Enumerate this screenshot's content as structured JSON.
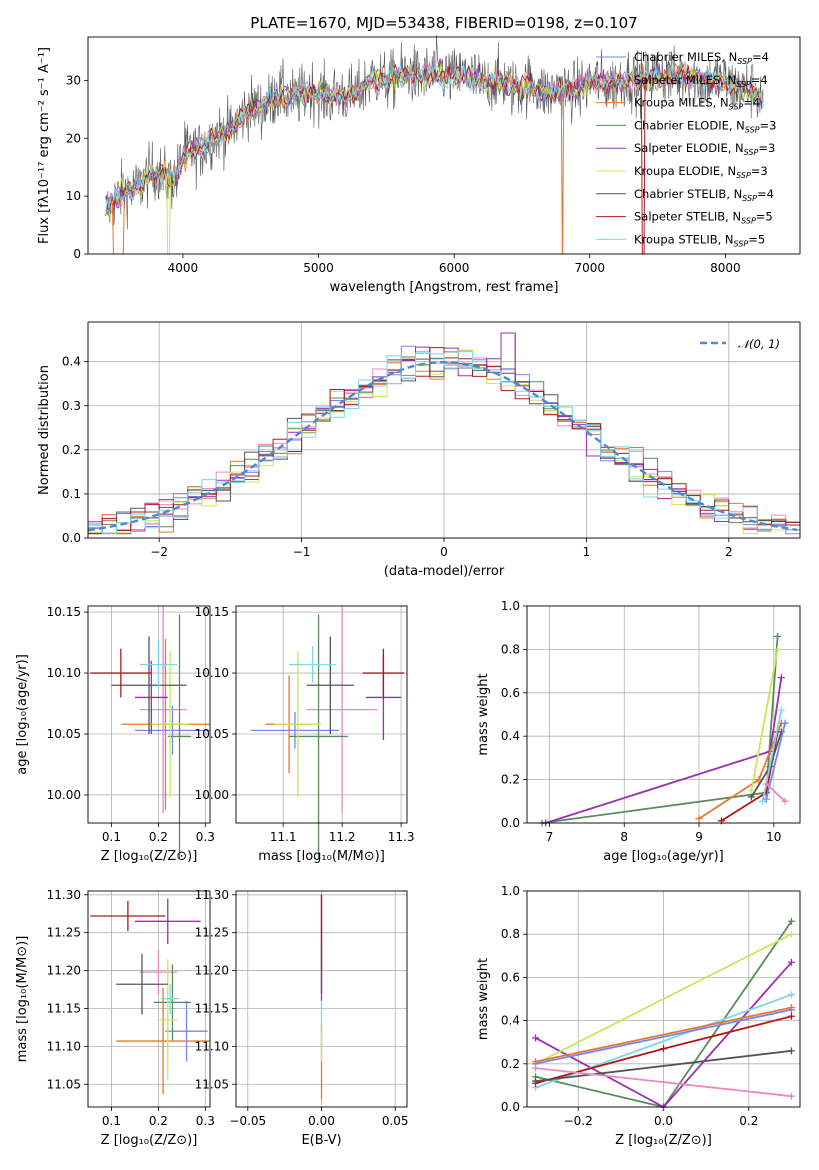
{
  "colors": {
    "Chabrier MILES": "#7088f0",
    "Salpeter MILES": "#e889c0",
    "Kroupa MILES": "#e8772e",
    "Chabrier ELODIE": "#5a8a5e",
    "Salpeter ELODIE": "#9a30b0",
    "Kroupa ELODIE": "#c8e858",
    "Chabrier STELIB": "#555555",
    "Salpeter STELIB": "#b01818",
    "Kroupa STELIB": "#7ad8e8",
    "normal": "#4d88d8"
  },
  "chart_data": [
    {
      "id": "spectrum",
      "type": "line",
      "title": "PLATE=1670, MJD=53438, FIBERID=0198, z=0.107",
      "xlabel": "wavelength [Angstrom, rest frame]",
      "ylabel": "Flux [fλ10⁻¹⁷ erg cm⁻² s⁻¹ A⁻¹]",
      "xlim": [
        3300,
        8550
      ],
      "ylim": [
        0,
        37.5
      ],
      "xticks": [
        "4000",
        "5000",
        "6000",
        "7000",
        "8000"
      ],
      "yticks": [
        "0",
        "10",
        "20",
        "30"
      ],
      "legend": [
        {
          "series": "Chabrier MILES",
          "label": "Chabrier MILES, N",
          "sub": "SSP",
          "tail": "=4"
        },
        {
          "series": "Salpeter MILES",
          "label": "Salpeter MILES, N",
          "sub": "SSP",
          "tail": "=4"
        },
        {
          "series": "Kroupa MILES",
          "label": "Kroupa MILES, N",
          "sub": "SSP",
          "tail": "=4"
        },
        {
          "series": "Chabrier ELODIE",
          "label": "Chabrier ELODIE, N",
          "sub": "SSP",
          "tail": "=3"
        },
        {
          "series": "Salpeter ELODIE",
          "label": "Salpeter ELODIE, N",
          "sub": "SSP",
          "tail": "=3"
        },
        {
          "series": "Kroupa ELODIE",
          "label": "Kroupa ELODIE, N",
          "sub": "SSP",
          "tail": "=3"
        },
        {
          "series": "Chabrier STELIB",
          "label": "Chabrier STELIB, N",
          "sub": "SSP",
          "tail": "=4"
        },
        {
          "series": "Salpeter STELIB",
          "label": "Salpeter STELIB, N",
          "sub": "SSP",
          "tail": "=5"
        },
        {
          "series": "Kroupa STELIB",
          "label": "Kroupa STELIB, N",
          "sub": "SSP",
          "tail": "=5"
        }
      ],
      "continuum": [
        [
          3430,
          8
        ],
        [
          3600,
          11
        ],
        [
          3800,
          14
        ],
        [
          3950,
          13
        ],
        [
          4000,
          17
        ],
        [
          4100,
          18
        ],
        [
          4300,
          21
        ],
        [
          4500,
          25
        ],
        [
          4700,
          27
        ],
        [
          5000,
          28
        ],
        [
          5200,
          27
        ],
        [
          5400,
          30
        ],
        [
          5700,
          31
        ],
        [
          6000,
          31
        ],
        [
          6200,
          30
        ],
        [
          6500,
          29
        ],
        [
          6800,
          28
        ],
        [
          7000,
          29.5
        ],
        [
          7300,
          30
        ],
        [
          7600,
          31
        ],
        [
          7900,
          30
        ],
        [
          8100,
          29
        ],
        [
          8280,
          27
        ]
      ],
      "drops": [
        {
          "series": "Kroupa MILES",
          "x": [
            3480,
            3560
          ]
        },
        {
          "series": "Kroupa ELODIE",
          "x": [
            3880,
            3900
          ]
        },
        {
          "series": "Kroupa MILES",
          "x": [
            6790,
            6800
          ]
        },
        {
          "series": "Salpeter STELIB",
          "x": [
            7380,
            7400
          ]
        }
      ]
    },
    {
      "id": "residuals",
      "type": "histogram",
      "xlabel": "(data-model)/error",
      "ylabel": "Normed distribution",
      "xlim": [
        -2.5,
        2.5
      ],
      "ylim": [
        0,
        0.49
      ],
      "xticks": [
        "−2",
        "−1",
        "0",
        "1",
        "2"
      ],
      "yticks": [
        "0.0",
        "0.1",
        "0.2",
        "0.3",
        "0.4"
      ],
      "legend": "𝒩(0, 1)",
      "bin_width": 0.1
    },
    {
      "id": "age_vs_Z",
      "type": "errorbar",
      "xlabel": "Z [log₁₀(Z/Z⊙)]",
      "ylabel": "age  [log₁₀(age/yr)]",
      "xlim": [
        0.05,
        0.31
      ],
      "ylim": [
        9.977,
        10.155
      ],
      "xticks": [
        "0.1",
        "0.2",
        "0.3"
      ],
      "yticks": [
        "10.00",
        "10.05",
        "10.10",
        "10.15"
      ],
      "points": [
        {
          "s": "Chabrier MILES",
          "x": 0.23,
          "xe": 0.08,
          "y": 10.053,
          "ye": 0.02
        },
        {
          "s": "Salpeter MILES",
          "x": 0.21,
          "xe": 0.05,
          "y": 10.07,
          "ye": 0.085
        },
        {
          "s": "Kroupa MILES",
          "x": 0.215,
          "xe": 0.095,
          "y": 10.058,
          "ye": 0.07
        },
        {
          "s": "Chabrier ELODIE",
          "x": 0.245,
          "xe": 0.025,
          "y": 10.048,
          "ye": 0.1
        },
        {
          "s": "Salpeter ELODIE",
          "x": 0.185,
          "xe": 0.035,
          "y": 10.08,
          "ye": 0.03
        },
        {
          "s": "Kroupa ELODIE",
          "x": 0.225,
          "xe": 0.04,
          "y": 10.058,
          "ye": 0.06
        },
        {
          "s": "Chabrier STELIB",
          "x": 0.18,
          "xe": 0.08,
          "y": 10.09,
          "ye": 0.04
        },
        {
          "s": "Salpeter STELIB",
          "x": 0.12,
          "xe": 0.065,
          "y": 10.1,
          "ye": 0.02
        },
        {
          "s": "Kroupa STELIB",
          "x": 0.2,
          "xe": 0.04,
          "y": 10.107,
          "ye": 0.02
        }
      ]
    },
    {
      "id": "age_vs_mass",
      "type": "errorbar",
      "xlabel": "mass [log₁₀(M/M⊙)]",
      "xlim": [
        11.02,
        11.31
      ],
      "ylim": [
        9.977,
        10.155
      ],
      "xticks": [
        "11.1",
        "11.2",
        "11.3"
      ],
      "yticks": [
        "10.00",
        "10.05",
        "10.10",
        "10.15"
      ],
      "points": [
        {
          "s": "Chabrier MILES",
          "x": 11.12,
          "xe": 0.075,
          "y": 10.053,
          "ye": 0.015
        },
        {
          "s": "Salpeter MILES",
          "x": 11.2,
          "xe": 0.06,
          "y": 10.07,
          "ye": 0.085
        },
        {
          "s": "Kroupa MILES",
          "x": 11.11,
          "xe": 0.04,
          "y": 10.058,
          "ye": 0.04
        },
        {
          "s": "Chabrier ELODIE",
          "x": 11.16,
          "xe": 0.05,
          "y": 10.048,
          "ye": 0.1
        },
        {
          "s": "Salpeter ELODIE",
          "x": 11.27,
          "xe": 0.03,
          "y": 10.08,
          "ye": 0.035
        },
        {
          "s": "Kroupa ELODIE",
          "x": 11.125,
          "xe": 0.04,
          "y": 10.058,
          "ye": 0.06
        },
        {
          "s": "Chabrier STELIB",
          "x": 11.18,
          "xe": 0.04,
          "y": 10.09,
          "ye": 0.04
        },
        {
          "s": "Salpeter STELIB",
          "x": 11.27,
          "xe": 0.035,
          "y": 10.1,
          "ye": 0.02
        },
        {
          "s": "Kroupa STELIB",
          "x": 11.15,
          "xe": 0.04,
          "y": 10.107,
          "ye": 0.015
        }
      ]
    },
    {
      "id": "weight_vs_age",
      "type": "line",
      "xlabel": "age  [log₁₀(age/yr)]",
      "ylabel": "mass weight",
      "xlim": [
        6.7,
        10.35
      ],
      "ylim": [
        0,
        1.0
      ],
      "xticks": [
        "7",
        "8",
        "9",
        "10"
      ],
      "yticks": [
        "0.0",
        "0.2",
        "0.4",
        "0.6",
        "0.8",
        "1.0"
      ],
      "series": [
        {
          "s": "Chabrier ELODIE",
          "x": [
            6.9,
            9.9,
            10.05
          ],
          "y": [
            0.0,
            0.14,
            0.86
          ]
        },
        {
          "s": "Salpeter ELODIE",
          "x": [
            6.95,
            9.95,
            10.1
          ],
          "y": [
            0.0,
            0.33,
            0.67
          ]
        },
        {
          "s": "Kroupa MILES",
          "x": [
            9.0,
            9.8,
            10.1
          ],
          "y": [
            0.02,
            0.2,
            0.46
          ]
        },
        {
          "s": "Salpeter STELIB",
          "x": [
            9.3,
            9.9,
            10.05
          ],
          "y": [
            0.01,
            0.14,
            0.42
          ]
        },
        {
          "s": "Chabrier STELIB",
          "x": [
            9.7,
            9.95,
            10.1
          ],
          "y": [
            0.12,
            0.26,
            0.42
          ]
        },
        {
          "s": "Kroupa ELODIE",
          "x": [
            9.7,
            10.05
          ],
          "y": [
            0.15,
            0.8
          ]
        },
        {
          "s": "Kroupa STELIB",
          "x": [
            9.85,
            10.1
          ],
          "y": [
            0.1,
            0.52
          ]
        },
        {
          "s": "Chabrier MILES",
          "x": [
            9.9,
            10.15
          ],
          "y": [
            0.11,
            0.46
          ]
        },
        {
          "s": "Salpeter MILES",
          "x": [
            9.9,
            10.15
          ],
          "y": [
            0.18,
            0.1
          ]
        }
      ]
    },
    {
      "id": "mass_vs_Z",
      "type": "errorbar",
      "xlabel": "Z [log₁₀(Z/Z⊙)]",
      "ylabel": "mass [log₁₀(M/M⊙)]",
      "xlim": [
        0.05,
        0.31
      ],
      "ylim": [
        11.02,
        11.305
      ],
      "xticks": [
        "0.1",
        "0.2",
        "0.3"
      ],
      "yticks": [
        "11.05",
        "11.10",
        "11.15",
        "11.20",
        "11.25",
        "11.30"
      ],
      "points": [
        {
          "s": "Chabrier MILES",
          "x": 0.26,
          "xe": 0.045,
          "y": 11.12,
          "ye": 0.04
        },
        {
          "s": "Salpeter MILES",
          "x": 0.2,
          "xe": 0.04,
          "y": 11.198,
          "ye": 0.03
        },
        {
          "s": "Kroupa MILES",
          "x": 0.21,
          "xe": 0.1,
          "y": 11.107,
          "ye": 0.07
        },
        {
          "s": "Chabrier ELODIE",
          "x": 0.23,
          "xe": 0.04,
          "y": 11.158,
          "ye": 0.05
        },
        {
          "s": "Salpeter ELODIE",
          "x": 0.22,
          "xe": 0.07,
          "y": 11.265,
          "ye": 0.03
        },
        {
          "s": "Kroupa ELODIE",
          "x": 0.22,
          "xe": 0.02,
          "y": 11.135,
          "ye": 0.08
        },
        {
          "s": "Chabrier STELIB",
          "x": 0.165,
          "xe": 0.055,
          "y": 11.182,
          "ye": 0.04
        },
        {
          "s": "Salpeter STELIB",
          "x": 0.135,
          "xe": 0.08,
          "y": 11.272,
          "ye": 0.02
        },
        {
          "s": "Kroupa STELIB",
          "x": 0.225,
          "xe": 0.02,
          "y": 11.163,
          "ye": 0.02
        }
      ]
    },
    {
      "id": "mass_vs_ebv",
      "type": "errorbar",
      "xlabel": "E(B-V)",
      "xlim": [
        -0.058,
        0.058
      ],
      "ylim": [
        11.02,
        11.305
      ],
      "xticks": [
        "−0.05",
        "0.00",
        "0.05"
      ],
      "yticks": [
        "11.05",
        "11.10",
        "11.15",
        "11.20",
        "11.25",
        "11.30"
      ],
      "points": [
        {
          "s": "Salpeter ELODIE",
          "x": 0.0,
          "xe": 0.0,
          "y": 11.23,
          "ye": 0.07
        },
        {
          "s": "Salpeter STELIB",
          "x": 0.0,
          "xe": 0.0,
          "y": 11.25,
          "ye": 0.05
        },
        {
          "s": "Chabrier STELIB",
          "x": 0.0,
          "xe": 0.0,
          "y": 11.2,
          "ye": 0.03
        },
        {
          "s": "Kroupa MILES",
          "x": 0.0,
          "xe": 0.0,
          "y": 11.08,
          "ye": 0.05
        },
        {
          "s": "Kroupa STELIB",
          "x": 0.0,
          "xe": 0.0,
          "y": 11.13,
          "ye": 0.03
        },
        {
          "s": "Kroupa ELODIE",
          "x": 0.0,
          "xe": 0.0,
          "y": 11.1,
          "ye": 0.02
        }
      ]
    },
    {
      "id": "weight_vs_Z",
      "type": "line",
      "xlabel": "Z [log₁₀(Z/Z⊙)]",
      "ylabel": "mass weight",
      "xlim": [
        -0.32,
        0.32
      ],
      "ylim": [
        0,
        1.0
      ],
      "xticks": [
        "−0.2",
        "0.0",
        "0.2"
      ],
      "yticks": [
        "0.0",
        "0.2",
        "0.4",
        "0.6",
        "0.8",
        "1.0"
      ],
      "series": [
        {
          "s": "Chabrier ELODIE",
          "x": [
            -0.3,
            0.0,
            0.3
          ],
          "y": [
            0.14,
            0.0,
            0.86
          ]
        },
        {
          "s": "Salpeter ELODIE",
          "x": [
            -0.3,
            0.0,
            0.3
          ],
          "y": [
            0.32,
            0.0,
            0.67
          ]
        },
        {
          "s": "Kroupa ELODIE",
          "x": [
            -0.3,
            0.3
          ],
          "y": [
            0.2,
            0.8
          ]
        },
        {
          "s": "Kroupa STELIB",
          "x": [
            -0.3,
            0.3
          ],
          "y": [
            0.09,
            0.52
          ]
        },
        {
          "s": "Kroupa MILES",
          "x": [
            -0.3,
            0.3
          ],
          "y": [
            0.21,
            0.46
          ]
        },
        {
          "s": "Chabrier MILES",
          "x": [
            -0.3,
            0.3
          ],
          "y": [
            0.2,
            0.45
          ]
        },
        {
          "s": "Salpeter STELIB",
          "x": [
            -0.3,
            0.0,
            0.3
          ],
          "y": [
            0.11,
            0.27,
            0.42
          ]
        },
        {
          "s": "Chabrier STELIB",
          "x": [
            -0.3,
            0.3
          ],
          "y": [
            0.12,
            0.26
          ]
        },
        {
          "s": "Salpeter MILES",
          "x": [
            -0.3,
            0.3
          ],
          "y": [
            0.18,
            0.05
          ]
        }
      ]
    }
  ]
}
